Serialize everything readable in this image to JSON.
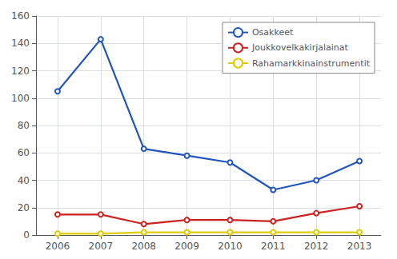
{
  "chart_data": {
    "type": "line",
    "x": [
      2006,
      2007,
      2008,
      2009,
      2010,
      2011,
      2012,
      2013
    ],
    "series": [
      {
        "name": "Osakkeet",
        "color": "#2255bb",
        "values": [
          105,
          143,
          63,
          58,
          53,
          33,
          40,
          54
        ]
      },
      {
        "name": "Joukkovelkakirjalainat",
        "color": "#cc2222",
        "values": [
          15,
          15,
          8,
          11,
          11,
          10,
          16,
          21
        ]
      },
      {
        "name": "Rahamarkkinainstrumentit",
        "color": "#ddcc00",
        "values": [
          1,
          1,
          2,
          2,
          2,
          2,
          2,
          2
        ]
      }
    ],
    "xlim": [
      2005.5,
      2013.5
    ],
    "xticks": [
      2006,
      2007,
      2008,
      2009,
      2010,
      2011,
      2012,
      2013
    ],
    "ylim": [
      0,
      160
    ],
    "yticks": [
      0,
      20,
      40,
      60,
      80,
      100,
      120,
      140,
      160
    ],
    "grid": true,
    "legend": "upper right"
  }
}
